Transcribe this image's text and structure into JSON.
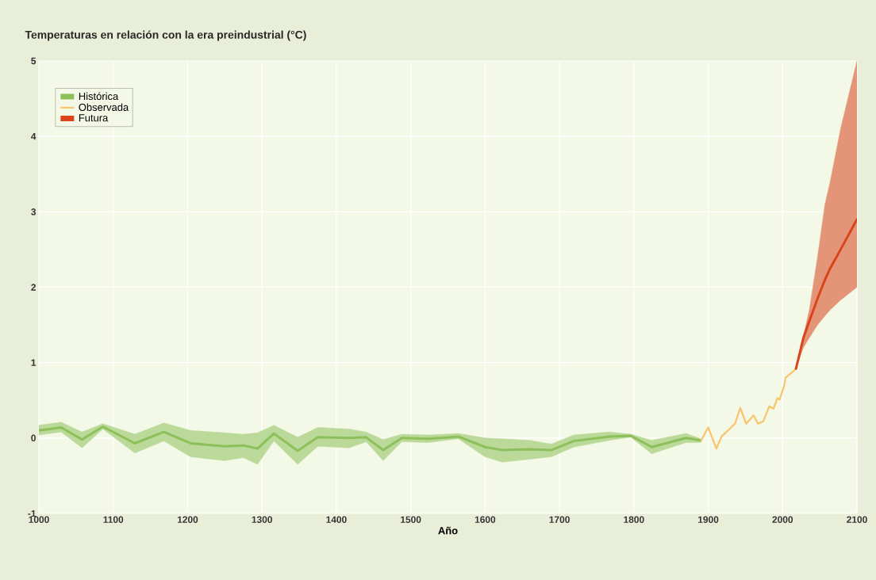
{
  "chart_data": {
    "type": "line",
    "title": "Temperaturas en relación con la era preindustrial (°C)",
    "xlabel": "Año",
    "xlim": [
      1000,
      2100
    ],
    "xticks": [
      1000,
      1100,
      1200,
      1300,
      1400,
      1500,
      1600,
      1700,
      1800,
      1900,
      2000,
      2100
    ],
    "ylim": [
      -1,
      5
    ],
    "yticks": [
      -1,
      0,
      1,
      2,
      3,
      4,
      5
    ],
    "grid": true,
    "legend": "top left",
    "series": [
      {
        "name": "Histórica",
        "color": "#8dbf5a",
        "x": [
          1000,
          1030,
          1058,
          1086,
          1129,
          1168,
          1204,
          1250,
          1275,
          1294,
          1316,
          1348,
          1375,
          1417,
          1440,
          1463,
          1488,
          1524,
          1564,
          1600,
          1623,
          1660,
          1689,
          1719,
          1767,
          1796,
          1824,
          1870,
          1890
        ],
        "values": [
          0.1,
          0.14,
          -0.02,
          0.15,
          -0.07,
          0.08,
          -0.07,
          -0.11,
          -0.1,
          -0.14,
          0.06,
          -0.17,
          0.01,
          0,
          0.01,
          -0.16,
          0,
          -0.01,
          0.02,
          -0.12,
          -0.16,
          -0.15,
          -0.16,
          -0.04,
          0.02,
          0.03,
          -0.12,
          0,
          -0.03
        ],
        "lower": [
          0.04,
          0.08,
          -0.13,
          0.12,
          -0.2,
          -0.04,
          -0.25,
          -0.3,
          -0.26,
          -0.35,
          -0.04,
          -0.35,
          -0.11,
          -0.13,
          -0.05,
          -0.3,
          -0.05,
          -0.06,
          -0.01,
          -0.25,
          -0.32,
          -0.28,
          -0.25,
          -0.12,
          -0.03,
          0.01,
          -0.21,
          -0.06,
          -0.06
        ],
        "upper": [
          0.17,
          0.21,
          0.08,
          0.19,
          0.05,
          0.2,
          0.1,
          0.07,
          0.05,
          0.07,
          0.17,
          0.01,
          0.14,
          0.12,
          0.08,
          -0.02,
          0.05,
          0.04,
          0.06,
          0,
          -0.01,
          -0.03,
          -0.08,
          0.04,
          0.08,
          0.05,
          -0.03,
          0.06,
          -0.01
        ]
      },
      {
        "name": "Observada",
        "color": "#f8c46c",
        "x": [
          1890,
          1900,
          1911,
          1918,
          1936,
          1943,
          1951,
          1961,
          1967,
          1974,
          1982,
          1988,
          1993,
          1996,
          2002,
          2004,
          2015,
          2018
        ],
        "values": [
          -0.04,
          0.14,
          -0.14,
          0.02,
          0.19,
          0.4,
          0.19,
          0.3,
          0.19,
          0.22,
          0.42,
          0.39,
          0.53,
          0.51,
          0.69,
          0.8,
          0.89,
          0.92
        ]
      },
      {
        "name": "Futura",
        "color": "#d9441c",
        "x": [
          2018,
          2028,
          2036,
          2047,
          2057,
          2064,
          2078,
          2100
        ],
        "values": [
          0.92,
          1.33,
          1.55,
          1.85,
          2.1,
          2.25,
          2.5,
          2.9
        ],
        "lower": [
          0.92,
          1.2,
          1.33,
          1.5,
          1.62,
          1.7,
          1.83,
          2.0
        ],
        "upper": [
          0.92,
          1.35,
          1.7,
          2.4,
          3.1,
          3.4,
          4.1,
          5.0
        ]
      }
    ]
  }
}
